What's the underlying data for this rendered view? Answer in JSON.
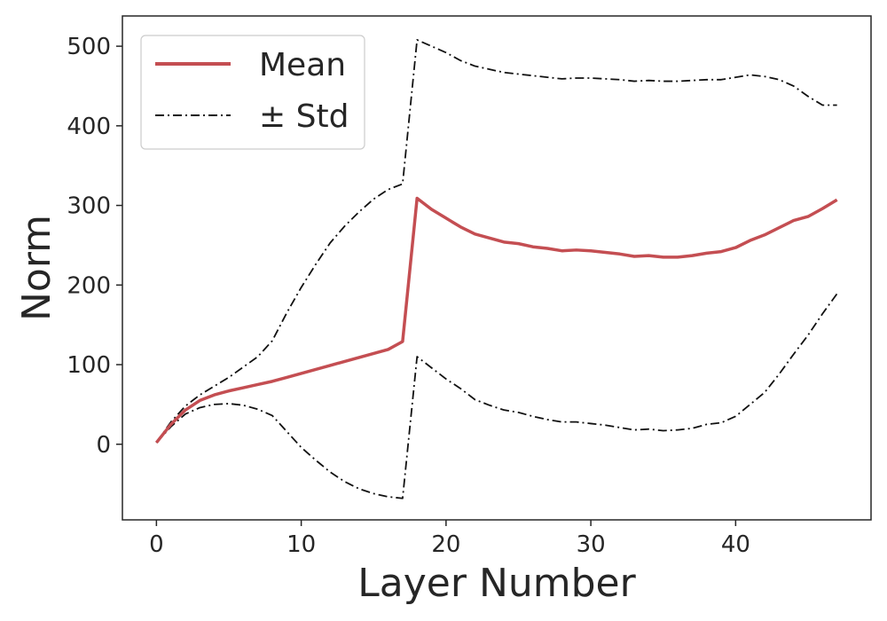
{
  "chart_data": {
    "type": "line",
    "title": "",
    "xlabel": "Layer Number",
    "ylabel": "Norm",
    "xlim": [
      -2.35,
      49.35
    ],
    "ylim": [
      -95,
      538
    ],
    "xticks": [
      0,
      10,
      20,
      30,
      40
    ],
    "yticks": [
      0,
      100,
      200,
      300,
      400,
      500
    ],
    "xtick_labels": [
      "0",
      "10",
      "20",
      "30",
      "40"
    ],
    "ytick_labels": [
      "0",
      "100",
      "200",
      "300",
      "400",
      "500"
    ],
    "grid": false,
    "legend": {
      "position": "top-left",
      "entries": [
        "Mean",
        "± Std"
      ]
    },
    "colors": {
      "mean": "#c44e52",
      "std": "#111111",
      "axes": "#262626"
    },
    "x": [
      0,
      1,
      2,
      3,
      4,
      5,
      6,
      7,
      8,
      9,
      10,
      11,
      12,
      13,
      14,
      15,
      16,
      17,
      18,
      19,
      20,
      21,
      22,
      23,
      24,
      25,
      26,
      27,
      28,
      29,
      30,
      31,
      32,
      33,
      34,
      35,
      36,
      37,
      38,
      39,
      40,
      41,
      42,
      43,
      44,
      45,
      46,
      47
    ],
    "series": [
      {
        "name": "Mean",
        "style": "solid",
        "values": [
          2,
          25,
          43,
          55,
          62,
          67,
          71,
          75,
          79,
          84,
          89,
          94,
          99,
          104,
          109,
          114,
          119,
          129,
          309,
          295,
          284,
          273,
          264,
          259,
          254,
          252,
          248,
          246,
          243,
          244,
          243,
          241,
          239,
          236,
          237,
          235,
          235,
          237,
          240,
          242,
          247,
          256,
          263,
          272,
          281,
          286,
          296,
          307
        ]
      },
      {
        "name": "+ Std",
        "style": "dashdot",
        "values": [
          2,
          28,
          48,
          62,
          73,
          84,
          97,
          110,
          130,
          165,
          197,
          226,
          253,
          274,
          292,
          308,
          320,
          327,
          508,
          500,
          492,
          482,
          475,
          471,
          467,
          465,
          463,
          461,
          459,
          460,
          460,
          459,
          458,
          456,
          457,
          456,
          456,
          457,
          458,
          458,
          461,
          464,
          462,
          458,
          450,
          437,
          426,
          426
        ]
      },
      {
        "name": "- Std",
        "style": "dashdot",
        "values": [
          2,
          22,
          38,
          46,
          50,
          51,
          49,
          44,
          36,
          16,
          -4,
          -20,
          -35,
          -47,
          -56,
          -62,
          -66,
          -68,
          110,
          96,
          82,
          70,
          56,
          49,
          43,
          40,
          35,
          31,
          28,
          28,
          26,
          24,
          21,
          18,
          19,
          17,
          18,
          20,
          25,
          27,
          35,
          50,
          65,
          88,
          113,
          137,
          164,
          189
        ]
      }
    ]
  }
}
